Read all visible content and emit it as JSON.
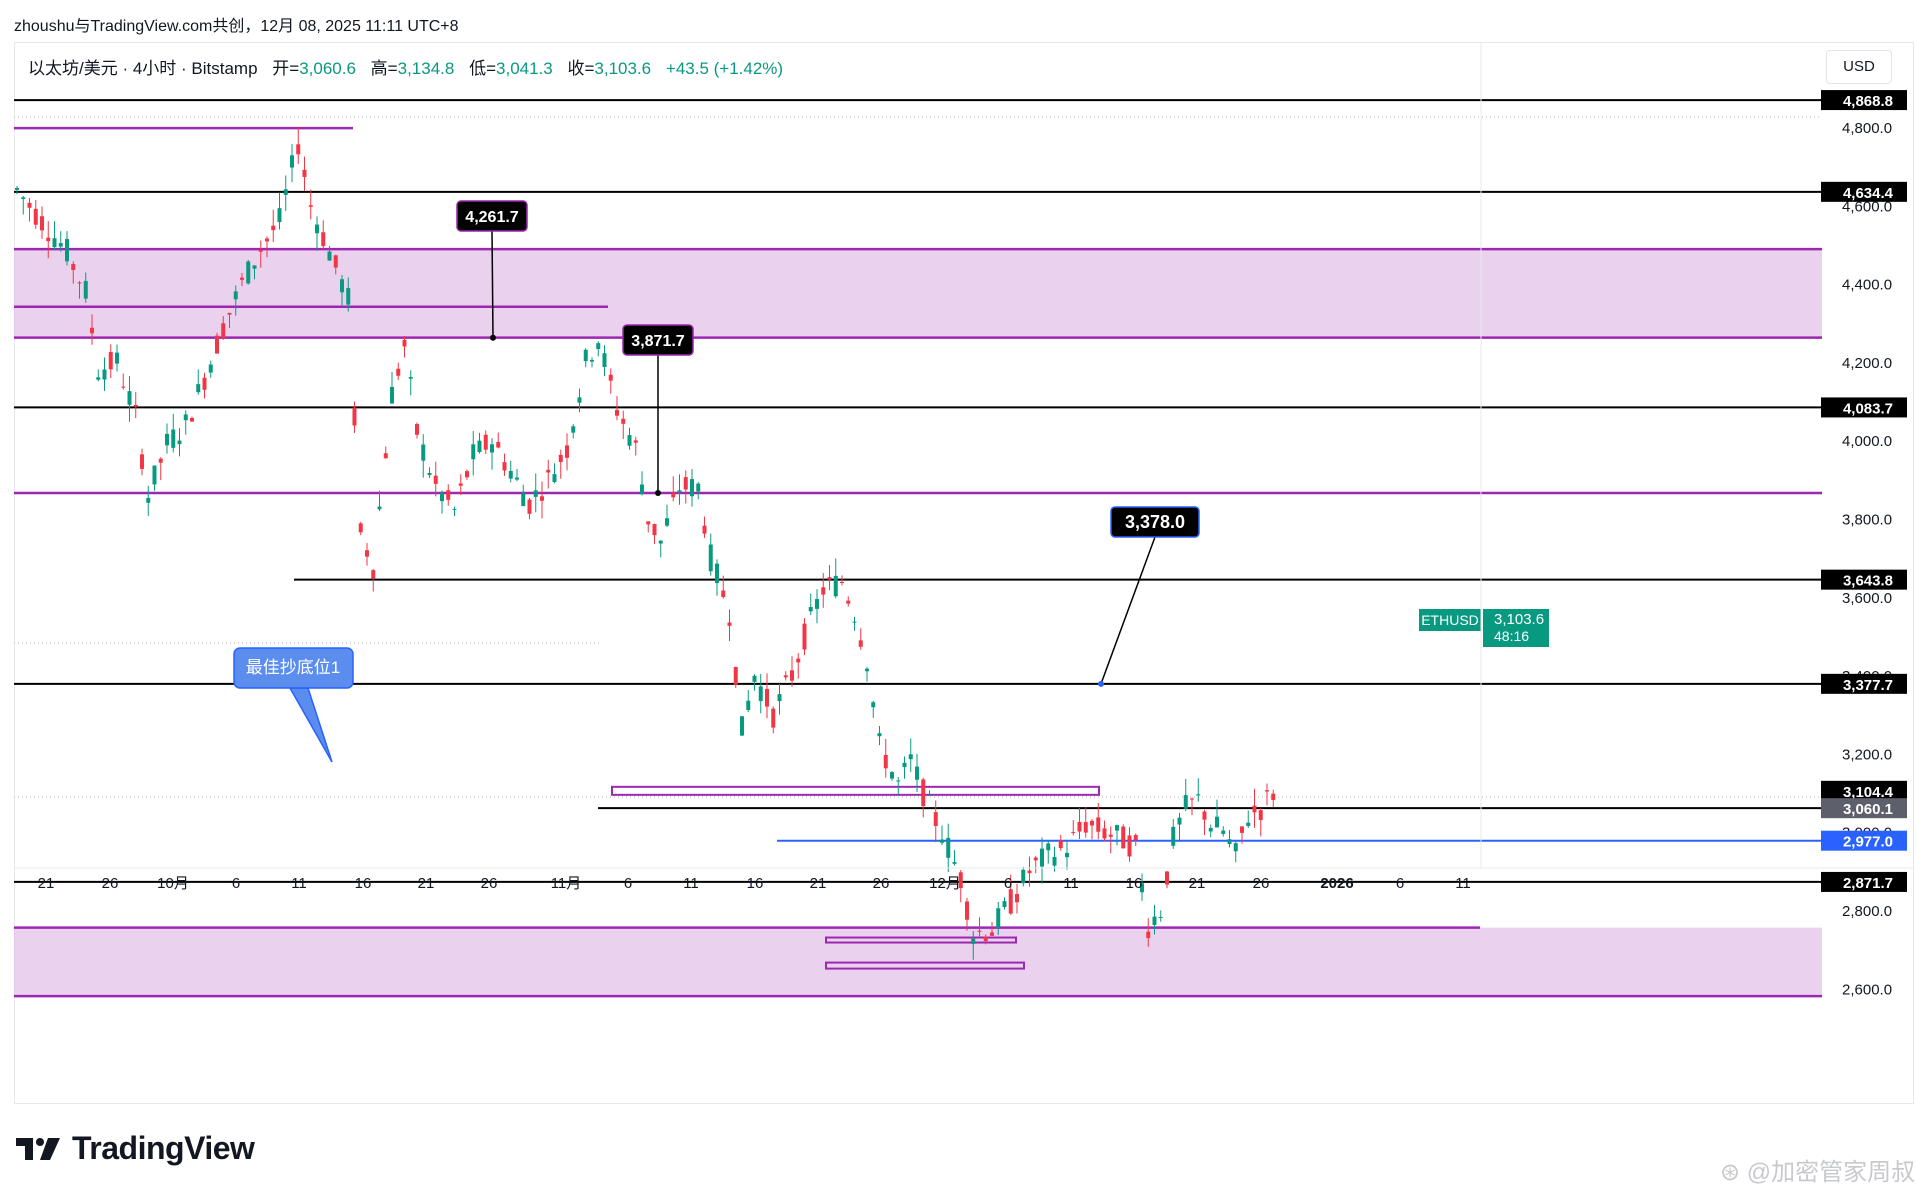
{
  "header": {
    "title": "zhoushu与TradingView.com共创，12月 08, 2025 11:11 UTC+8"
  },
  "symbol": {
    "name": "以太坊/美元 · 4小时 · Bitstamp",
    "open_label": "开=",
    "open": "3,060.6",
    "high_label": "高=",
    "high": "3,134.8",
    "low_label": "低=",
    "low": "3,041.3",
    "close_label": "收=",
    "close": "3,103.6",
    "change": "+43.5 (+1.42%)"
  },
  "currency": "USD",
  "colors": {
    "up": "#089981",
    "down": "#f23645",
    "zone": "#e1bee7",
    "purple": "#9c27b0",
    "blue": "#2962ff",
    "black": "#000000"
  },
  "chart_data": {
    "type": "candlestick",
    "symbol": "ETHUSD",
    "timeframe": "4小时",
    "exchange": "Bitstamp",
    "ylim": [
      2530,
      4960
    ],
    "x_ticks": [
      "21",
      "26",
      "10月",
      "6",
      "11",
      "16",
      "21",
      "26",
      "11月",
      "6",
      "11",
      "16",
      "21",
      "26",
      "12月",
      "6",
      "11",
      "16",
      "21",
      "26",
      "2026",
      "6",
      "11"
    ],
    "y_ticks": [
      "4,800.0",
      "4,600.0",
      "4,400.0",
      "4,200.0",
      "4,000.0",
      "3,800.0",
      "3,600.0",
      "3,400.0",
      "3,200.0",
      "3,000.0",
      "2,800.0",
      "2,600.0"
    ],
    "price_path": [
      [
        0,
        4640
      ],
      [
        4,
        4560
      ],
      [
        8,
        4480
      ],
      [
        11,
        4380
      ],
      [
        13,
        4180
      ],
      [
        16,
        4200
      ],
      [
        19,
        4060
      ],
      [
        21,
        3860
      ],
      [
        24,
        3990
      ],
      [
        27,
        4040
      ],
      [
        30,
        4160
      ],
      [
        33,
        4290
      ],
      [
        36,
        4400
      ],
      [
        39,
        4490
      ],
      [
        42,
        4560
      ],
      [
        45,
        4760
      ],
      [
        47,
        4600
      ],
      [
        50,
        4480
      ],
      [
        53,
        4360
      ],
      [
        55,
        3760
      ],
      [
        57,
        3680
      ],
      [
        60,
        4120
      ],
      [
        62,
        4240
      ],
      [
        64,
        4020
      ],
      [
        67,
        3880
      ],
      [
        70,
        3820
      ],
      [
        73,
        3960
      ],
      [
        76,
        4000
      ],
      [
        79,
        3920
      ],
      [
        82,
        3840
      ],
      [
        85,
        3900
      ],
      [
        88,
        3980
      ],
      [
        91,
        4200
      ],
      [
        93,
        4260
      ],
      [
        96,
        4080
      ],
      [
        99,
        3980
      ],
      [
        101,
        3800
      ],
      [
        103,
        3740
      ],
      [
        106,
        3880
      ],
      [
        109,
        3880
      ],
      [
        111,
        3700
      ],
      [
        114,
        3560
      ],
      [
        116,
        3260
      ],
      [
        118,
        3400
      ],
      [
        121,
        3300
      ],
      [
        124,
        3400
      ],
      [
        126,
        3500
      ],
      [
        129,
        3620
      ],
      [
        132,
        3640
      ],
      [
        134,
        3560
      ],
      [
        136,
        3440
      ],
      [
        138,
        3220
      ],
      [
        141,
        3120
      ],
      [
        143,
        3180
      ],
      [
        146,
        3060
      ],
      [
        148,
        3000
      ],
      [
        151,
        2880
      ],
      [
        153,
        2740
      ],
      [
        156,
        2750
      ],
      [
        159,
        2820
      ],
      [
        162,
        2900
      ],
      [
        165,
        2940
      ],
      [
        168,
        2960
      ],
      [
        171,
        3020
      ],
      [
        174,
        3000
      ],
      [
        177,
        2980
      ],
      [
        179,
        2960
      ],
      [
        181,
        2760
      ],
      [
        183,
        2800
      ],
      [
        185,
        2980
      ],
      [
        187,
        3060
      ],
      [
        189,
        3080
      ],
      [
        191,
        3020
      ],
      [
        193,
        3000
      ],
      [
        195,
        2940
      ],
      [
        197,
        3040
      ],
      [
        199,
        3060
      ],
      [
        201,
        3100
      ]
    ],
    "levels": [
      {
        "price": 4868.8,
        "label": "4,868.8",
        "color": "#000000",
        "style": "solid"
      },
      {
        "price": 4634.4,
        "label": "4,634.4",
        "color": "#000000",
        "style": "solid"
      },
      {
        "price": 4083.7,
        "label": "4,083.7",
        "color": "#000000",
        "style": "solid"
      },
      {
        "price": 3643.8,
        "label": "3,643.8",
        "color": "#000000",
        "style": "solid"
      },
      {
        "price": 3377.7,
        "label": "3,377.7",
        "color": "#000000",
        "style": "solid"
      },
      {
        "price": 3104.4,
        "label": "3,104.4",
        "color": "#000000",
        "style": "solid"
      },
      {
        "price": 3060.1,
        "label": "3,060.1",
        "color": "#000000",
        "style": "solid"
      },
      {
        "price": 2977.0,
        "label": "2,977.0",
        "color": "#2962ff",
        "style": "solid"
      },
      {
        "price": 2871.7,
        "label": "2,871.7",
        "color": "#000000",
        "style": "solid"
      }
    ],
    "purple_lines": [
      4488,
      4262,
      3865,
      2580
    ],
    "zones": [
      {
        "top": 4488,
        "bottom": 4262
      },
      {
        "top": 2755,
        "bottom": 2580
      }
    ],
    "current_price": {
      "symbol": "ETHUSD",
      "price": "3,103.6",
      "countdown": "48:16"
    },
    "callouts": [
      {
        "text": "4,261.7",
        "price": 4261.7
      },
      {
        "text": "3,871.7",
        "price": 3865
      },
      {
        "text": "3,378.0",
        "price": 3377.7
      }
    ],
    "annotation": "最佳抄底位1"
  },
  "branding": {
    "logo": "TradingView",
    "watermark": "⊛ @加密管家周叔"
  }
}
